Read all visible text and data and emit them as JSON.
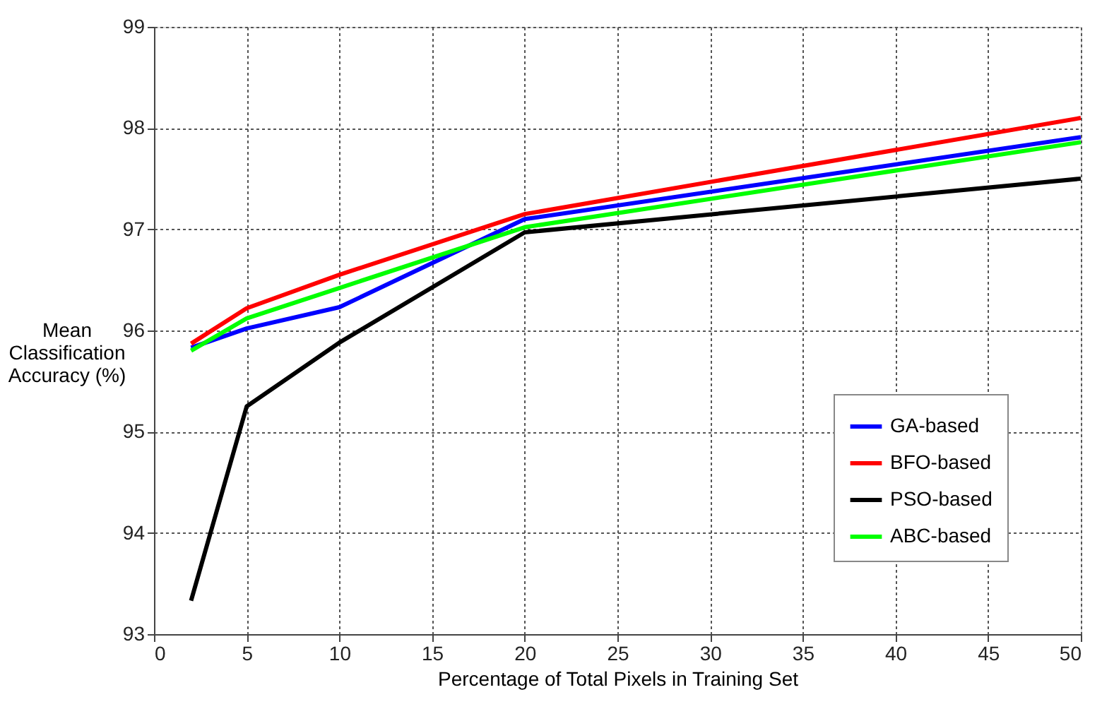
{
  "chart_data": {
    "type": "line",
    "xlabel": "Percentage of Total Pixels in Training Set",
    "ylabel": "Mean\nClassification\nAccuracy (%)",
    "x": [
      2,
      5,
      10,
      20,
      50
    ],
    "series": [
      {
        "name": "GA-based",
        "color": "#0000ff",
        "values": [
          95.83,
          96.02,
          96.23,
          97.1,
          97.91
        ]
      },
      {
        "name": "BFO-based",
        "color": "#ff0000",
        "values": [
          95.87,
          96.22,
          96.55,
          97.15,
          98.1
        ]
      },
      {
        "name": "PSO-based",
        "color": "#000000",
        "values": [
          93.33,
          95.25,
          95.88,
          96.97,
          97.5
        ]
      },
      {
        "name": "ABC-based",
        "color": "#00ff00",
        "values": [
          95.8,
          96.12,
          96.42,
          97.02,
          97.86
        ]
      }
    ],
    "xlim": [
      0,
      50
    ],
    "xticks": [
      0,
      5,
      10,
      15,
      20,
      25,
      30,
      35,
      40,
      45,
      50
    ],
    "ylim": [
      93,
      99
    ],
    "yticks": [
      93,
      94,
      95,
      96,
      97,
      98,
      99
    ],
    "grid": true,
    "legend": "bottom right",
    "marker": "none",
    "line_style": "solid"
  }
}
